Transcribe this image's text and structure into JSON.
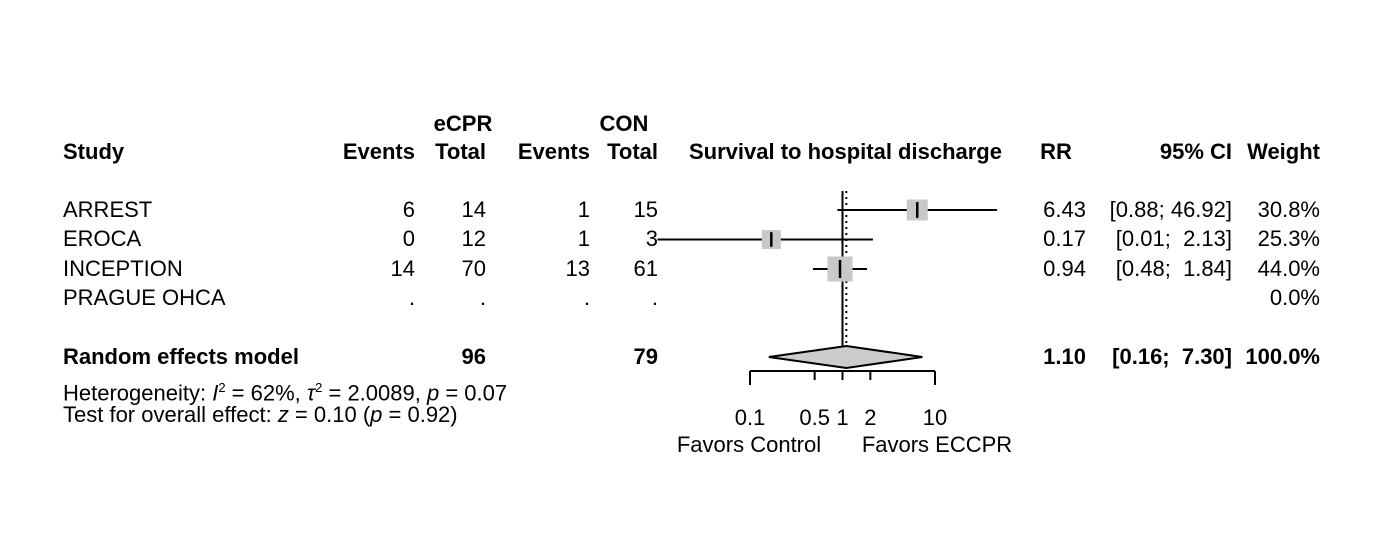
{
  "figure": {
    "header": {
      "study": "Study",
      "group1": "eCPR",
      "group2": "CON",
      "events1": "Events",
      "total1": "Total",
      "events2": "Events",
      "total2": "Total",
      "effect_label": "Survival to hospital discharge",
      "rr": "RR",
      "ci": "95% CI",
      "weight": "Weight"
    },
    "rows": [
      {
        "study": "ARREST",
        "e1": "6",
        "t1": "14",
        "e2": "1",
        "t2": "15",
        "rr": "6.43",
        "ci": "[0.88; 46.92]",
        "weight": "30.8%"
      },
      {
        "study": "EROCA",
        "e1": "0",
        "t1": "12",
        "e2": "1",
        "t2": "3",
        "rr": "0.17",
        "ci": "[0.01;  2.13]",
        "weight": "25.3%"
      },
      {
        "study": "INCEPTION",
        "e1": "14",
        "t1": "70",
        "e2": "13",
        "t2": "61",
        "rr": "0.94",
        "ci": "[0.48;  1.84]",
        "weight": "44.0%"
      },
      {
        "study": "PRAGUE OHCA",
        "e1": ".",
        "t1": ".",
        "e2": ".",
        "t2": ".",
        "rr": "",
        "ci": "",
        "weight": "0.0%"
      }
    ],
    "pooled_row": {
      "study": "Random effects model",
      "t1": "96",
      "t2": "79",
      "rr": "1.10",
      "ci": "[0.16;  7.30]",
      "weight": "100.0%"
    },
    "heterogeneity_line": {
      "prefix": "Heterogeneity: ",
      "i_sym": "I",
      "i_sup": "2",
      "mid1": " = 62%, ",
      "tau_sym": "τ",
      "tau_sup": "2",
      "mid2": " = 2.0089, ",
      "p_sym": "p",
      "tail": " = 0.07"
    },
    "overall_test_line": {
      "prefix": "Test for overall effect: ",
      "z_sym": "z",
      "mid": " = 0.10 (",
      "p_sym": "p",
      "tail": " = 0.92)"
    },
    "axis_labels": {
      "favors_left": "Favors Control",
      "favors_right": "Favors ECCPR"
    }
  },
  "chart_data": {
    "type": "forest",
    "title": "Survival to hospital discharge",
    "x_scale": "log",
    "axis_ticks": [
      0.1,
      0.5,
      1,
      2,
      10
    ],
    "axis_range": [
      0.1,
      10
    ],
    "reference_line": 1,
    "pooled_effect_line": 1.1,
    "favors_left": "Favors Control",
    "favors_right": "Favors ECCPR",
    "studies": [
      {
        "name": "ARREST",
        "events_ecpr": 6,
        "total_ecpr": 14,
        "events_con": 1,
        "total_con": 15,
        "rr": 6.43,
        "ci": [
          0.88,
          46.92
        ],
        "weight_pct": 30.8
      },
      {
        "name": "EROCA",
        "events_ecpr": 0,
        "total_ecpr": 12,
        "events_con": 1,
        "total_con": 3,
        "rr": 0.17,
        "ci": [
          0.01,
          2.13
        ],
        "weight_pct": 25.3
      },
      {
        "name": "INCEPTION",
        "events_ecpr": 14,
        "total_ecpr": 70,
        "events_con": 13,
        "total_con": 61,
        "rr": 0.94,
        "ci": [
          0.48,
          1.84
        ],
        "weight_pct": 44.0
      },
      {
        "name": "PRAGUE OHCA",
        "events_ecpr": null,
        "total_ecpr": null,
        "events_con": null,
        "total_con": null,
        "rr": null,
        "ci": null,
        "weight_pct": 0.0
      }
    ],
    "pooled": {
      "name": "Random effects model",
      "total_ecpr": 96,
      "total_con": 79,
      "rr": 1.1,
      "ci": [
        0.16,
        7.3
      ],
      "weight_pct": 100.0
    },
    "heterogeneity": {
      "I2": "62%",
      "tau2": 2.0089,
      "p": 0.07
    },
    "overall_effect": {
      "z": 0.1,
      "p": 0.92
    },
    "colors": {
      "square": "#c8c8c8",
      "diamond_fill": "#cccccc",
      "line": "#000000"
    }
  }
}
